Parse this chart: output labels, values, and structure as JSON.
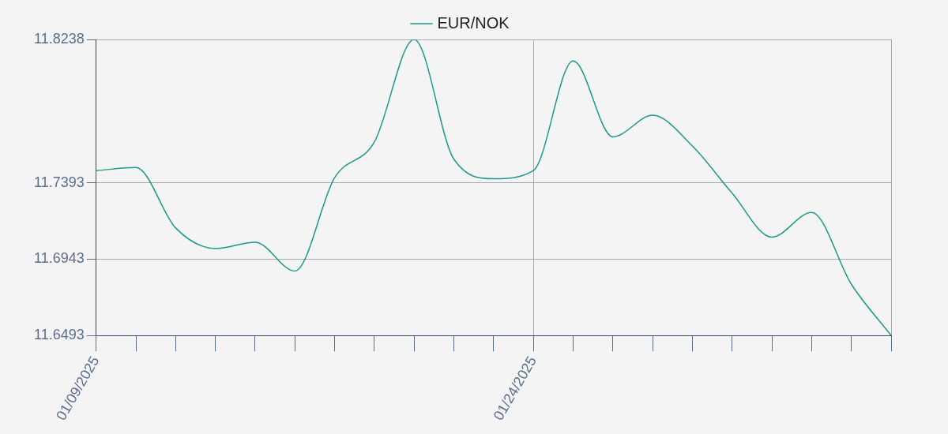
{
  "chart_data": {
    "type": "line",
    "categories": [
      "01/09/2025",
      null,
      null,
      null,
      null,
      null,
      null,
      null,
      null,
      null,
      null,
      "01/24/2025",
      null,
      null,
      null,
      null,
      null,
      null,
      null,
      null,
      null
    ],
    "series": [
      {
        "name": "EUR/NOK",
        "color": "#1a9a87",
        "values": [
          11.7465,
          11.7483,
          11.7127,
          11.7006,
          11.7043,
          11.6873,
          11.7423,
          11.7634,
          11.8238,
          11.7532,
          11.7417,
          11.7465,
          11.8111,
          11.7664,
          11.7791,
          11.761,
          11.7332,
          11.7073,
          11.7218,
          11.6795,
          11.6493
        ]
      }
    ],
    "ylim": [
      11.6493,
      11.8238
    ],
    "yticks": [
      11.6493,
      11.6943,
      11.7393,
      11.8238
    ],
    "grid": true,
    "legend": "top",
    "line_style": "solid"
  }
}
